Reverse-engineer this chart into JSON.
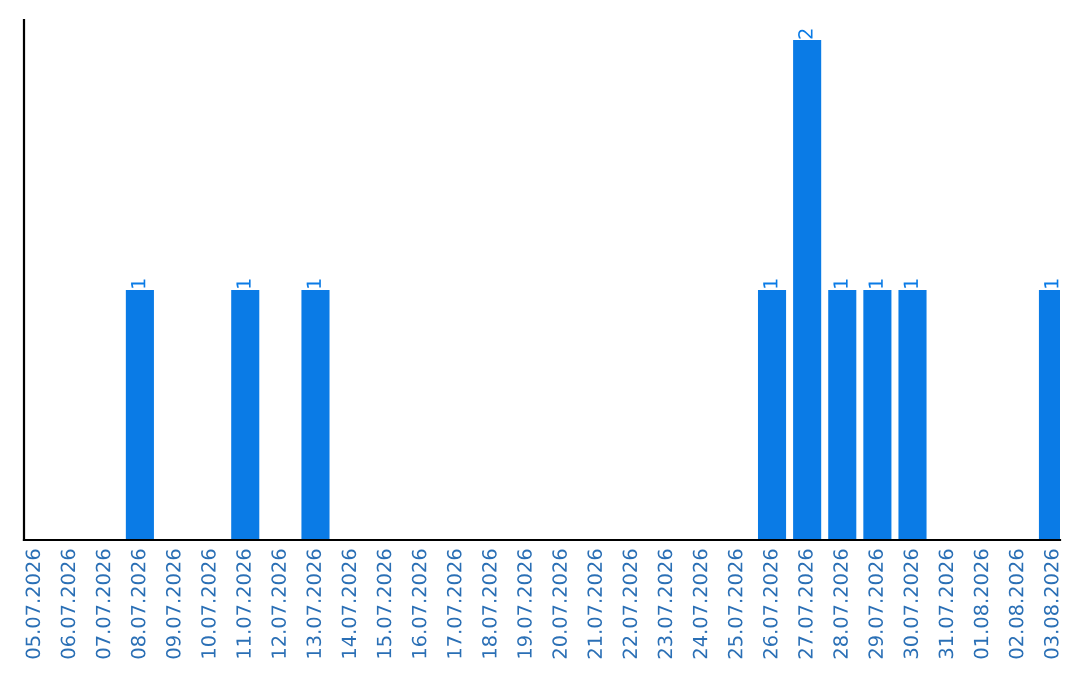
{
  "chart_data": {
    "type": "bar",
    "categories": [
      "05.07.2026",
      "06.07.2026",
      "07.07.2026",
      "08.07.2026",
      "09.07.2026",
      "10.07.2026",
      "11.07.2026",
      "12.07.2026",
      "13.07.2026",
      "14.07.2026",
      "15.07.2026",
      "16.07.2026",
      "17.07.2026",
      "18.07.2026",
      "19.07.2026",
      "20.07.2026",
      "21.07.2026",
      "22.07.2026",
      "23.07.2026",
      "24.07.2026",
      "25.07.2026",
      "26.07.2026",
      "27.07.2026",
      "28.07.2026",
      "29.07.2026",
      "30.07.2026",
      "31.07.2026",
      "01.08.2026",
      "02.08.2026",
      "03.08.2026"
    ],
    "values": [
      0,
      0,
      0,
      1,
      0,
      0,
      1,
      0,
      1,
      0,
      0,
      0,
      0,
      0,
      0,
      0,
      0,
      0,
      0,
      0,
      0,
      1,
      2,
      1,
      1,
      1,
      0,
      0,
      0,
      1
    ],
    "value_labels": [
      null,
      null,
      null,
      "1",
      null,
      null,
      "1",
      null,
      "1",
      null,
      null,
      null,
      null,
      null,
      null,
      null,
      null,
      null,
      null,
      null,
      null,
      "1",
      "2",
      "1",
      "1",
      "1",
      null,
      null,
      null,
      "1"
    ],
    "color": "#0a7be6",
    "ylim": [
      0,
      2.08
    ],
    "tick_labels": "x",
    "grid": false,
    "legend": false
  }
}
